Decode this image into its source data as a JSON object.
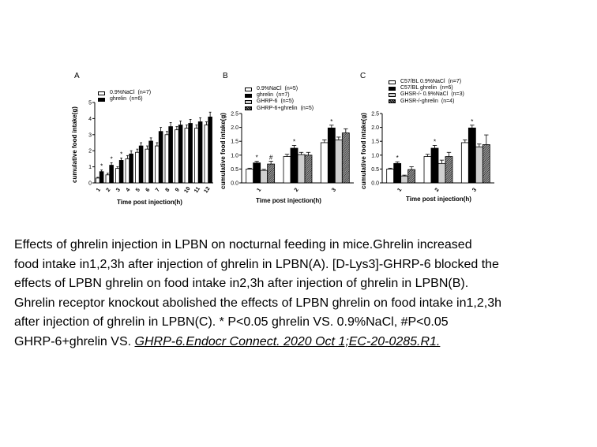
{
  "chart_data": [
    {
      "type": "bar",
      "panel_label": "A",
      "xlabel": "Time post injection(h)",
      "ylabel": "cumulative food intake(g)",
      "ylim": [
        0,
        5
      ],
      "yticks": [
        0,
        1,
        2,
        3,
        4,
        5
      ],
      "categories": [
        "1",
        "2",
        "3",
        "4",
        "5",
        "6",
        "7",
        "8",
        "9",
        "10",
        "11",
        "12"
      ],
      "series": [
        {
          "name": "0.9%NaCl",
          "n": "(n=7)",
          "fill": "white",
          "values": [
            0.3,
            0.5,
            0.9,
            1.5,
            1.9,
            2.1,
            2.3,
            3.0,
            3.3,
            3.4,
            3.4,
            3.6
          ],
          "errors": [
            0.05,
            0.1,
            0.1,
            0.2,
            0.2,
            0.2,
            0.2,
            0.2,
            0.2,
            0.2,
            0.2,
            0.2
          ]
        },
        {
          "name": "ghrelin",
          "n": "(n=6)",
          "fill": "black",
          "values": [
            0.7,
            1.1,
            1.4,
            1.8,
            2.3,
            2.6,
            3.2,
            3.5,
            3.6,
            3.7,
            3.8,
            4.1
          ],
          "errors": [
            0.1,
            0.15,
            0.15,
            0.2,
            0.2,
            0.2,
            0.25,
            0.25,
            0.25,
            0.25,
            0.25,
            0.3
          ]
        }
      ],
      "annotations": [
        {
          "category": "1",
          "text": "*"
        },
        {
          "category": "2",
          "text": "*"
        },
        {
          "category": "3",
          "text": "*"
        }
      ]
    },
    {
      "type": "bar",
      "panel_label": "B",
      "xlabel": "Time post injection(h)",
      "ylabel": "cumulative food intake(g)",
      "ylim": [
        0,
        2.5
      ],
      "yticks": [
        "0.0",
        "0.5",
        "1.0",
        "1.5",
        "2.0",
        "2.5"
      ],
      "categories": [
        "1",
        "2",
        "3"
      ],
      "series": [
        {
          "name": "0.9%NaCl",
          "n": "(n=5)",
          "fill": "white",
          "values": [
            0.5,
            0.95,
            1.45
          ],
          "errors": [
            0.03,
            0.08,
            0.1
          ]
        },
        {
          "name": "ghrelin",
          "n": "(n=7)",
          "fill": "black",
          "values": [
            0.72,
            1.25,
            1.98
          ],
          "errors": [
            0.06,
            0.1,
            0.1
          ]
        },
        {
          "name": "GHRP-6",
          "n": "(n=5)",
          "fill": "lightgray",
          "values": [
            0.45,
            1.02,
            1.55
          ],
          "errors": [
            0.04,
            0.08,
            0.1
          ]
        },
        {
          "name": "GHRP-6+ghrelin",
          "n": "(n=5)",
          "fill": "hatch",
          "values": [
            0.68,
            1.0,
            1.8
          ],
          "errors": [
            0.1,
            0.1,
            0.15
          ]
        }
      ],
      "annotations": [
        {
          "category": "1",
          "series": "ghrelin",
          "text": "*"
        },
        {
          "category": "1",
          "series": "GHRP-6+ghrelin",
          "text": "#"
        },
        {
          "category": "2",
          "series": "ghrelin",
          "text": "*"
        },
        {
          "category": "3",
          "series": "ghrelin",
          "text": "*"
        }
      ]
    },
    {
      "type": "bar",
      "panel_label": "C",
      "xlabel": "Time post injection(h)",
      "ylabel": "cumulative food intake(g)",
      "ylim": [
        0,
        2.5
      ],
      "yticks": [
        "0.0",
        "0.5",
        "1.0",
        "1.5",
        "2.0",
        "2.5"
      ],
      "categories": [
        "1",
        "2",
        "3"
      ],
      "series": [
        {
          "name": "C57/BL 0.9%NaCl",
          "n": "(n=7)",
          "fill": "white",
          "values": [
            0.5,
            0.95,
            1.45
          ],
          "errors": [
            0.03,
            0.08,
            0.1
          ]
        },
        {
          "name": "C57/BL ghrelin",
          "n": "(n=6)",
          "fill": "black",
          "values": [
            0.7,
            1.25,
            1.98
          ],
          "errors": [
            0.06,
            0.1,
            0.1
          ]
        },
        {
          "name": "GHSR-/- 0.9%NaCl",
          "n": "(n=3)",
          "fill": "lightgray",
          "values": [
            0.25,
            0.7,
            1.3
          ],
          "errors": [
            0.03,
            0.12,
            0.1
          ]
        },
        {
          "name": "GHSR-/-ghrelin",
          "n": "(n=4)",
          "fill": "hatch",
          "values": [
            0.48,
            0.95,
            1.38
          ],
          "errors": [
            0.1,
            0.15,
            0.35
          ]
        }
      ],
      "annotations": [
        {
          "category": "1",
          "series": "C57/BL ghrelin",
          "text": "*"
        },
        {
          "category": "2",
          "series": "C57/BL ghrelin",
          "text": "*"
        },
        {
          "category": "3",
          "series": "C57/BL ghrelin",
          "text": "*"
        }
      ]
    }
  ],
  "caption": {
    "lines": [
      "Effects of ghrelin injection in LPBN on nocturnal feeding in mice.Ghrelin increased",
      "food intake in1,2,3h after injection of ghrelin in LPBN(A). [D-Lys3]-GHRP-6 blocked the",
      "effects of LPBN ghrelin on food intake in2,3h after injection of ghrelin in LPBN(B).",
      "Ghrelin receptor knockout abolished the effects of LPBN ghrelin on food intake in1,2,3h",
      "after injection of ghrelin in LPBN(C). * P<0.05 ghrelin VS. 0.9%NaCl, #P<0.05"
    ],
    "last_line_prefix": "GHRP-6+ghrelin VS. ",
    "citation": "GHRP-6.Endocr Connect. 2020 Oct 1;EC-20-0285.R1."
  }
}
